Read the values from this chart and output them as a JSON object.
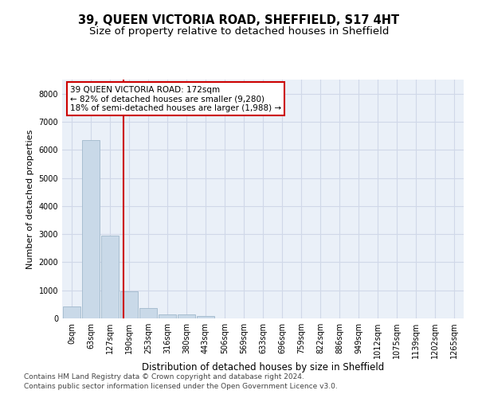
{
  "title1": "39, QUEEN VICTORIA ROAD, SHEFFIELD, S17 4HT",
  "title2": "Size of property relative to detached houses in Sheffield",
  "xlabel": "Distribution of detached houses by size in Sheffield",
  "ylabel": "Number of detached properties",
  "bar_labels": [
    "0sqm",
    "63sqm",
    "127sqm",
    "190sqm",
    "253sqm",
    "316sqm",
    "380sqm",
    "443sqm",
    "506sqm",
    "569sqm",
    "633sqm",
    "696sqm",
    "759sqm",
    "822sqm",
    "886sqm",
    "949sqm",
    "1012sqm",
    "1075sqm",
    "1139sqm",
    "1202sqm",
    "1265sqm"
  ],
  "bar_values": [
    430,
    6350,
    2950,
    950,
    380,
    155,
    130,
    90,
    0,
    0,
    0,
    0,
    0,
    0,
    0,
    0,
    0,
    0,
    0,
    0,
    0
  ],
  "bar_color": "#c9d9e8",
  "bar_edgecolor": "#a0b8cc",
  "vline_color": "#cc0000",
  "annotation_text": "39 QUEEN VICTORIA ROAD: 172sqm\n← 82% of detached houses are smaller (9,280)\n18% of semi-detached houses are larger (1,988) →",
  "annotation_box_color": "#cc0000",
  "ylim": [
    0,
    8500
  ],
  "yticks": [
    0,
    1000,
    2000,
    3000,
    4000,
    5000,
    6000,
    7000,
    8000
  ],
  "grid_color": "#d0d8e8",
  "background_color": "#eaf0f8",
  "footer1": "Contains HM Land Registry data © Crown copyright and database right 2024.",
  "footer2": "Contains public sector information licensed under the Open Government Licence v3.0.",
  "title1_fontsize": 10.5,
  "title2_fontsize": 9.5,
  "xlabel_fontsize": 8.5,
  "ylabel_fontsize": 8,
  "tick_fontsize": 7,
  "annotation_fontsize": 7.5,
  "footer_fontsize": 6.5
}
